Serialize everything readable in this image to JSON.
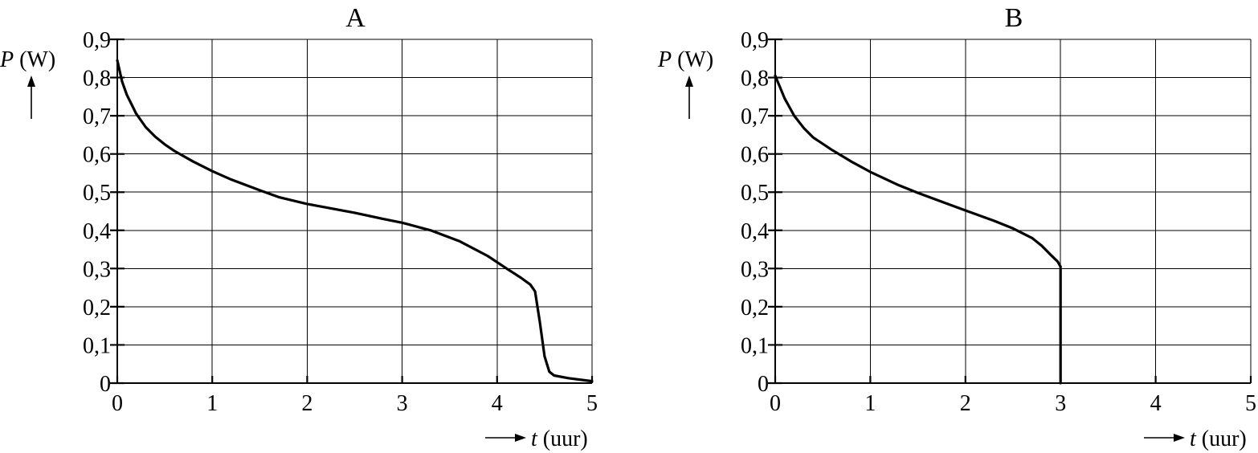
{
  "chart_data": [
    {
      "type": "line",
      "title": "A",
      "xlabel_symbol": "t",
      "xlabel_unit": "(uur)",
      "ylabel_symbol": "P",
      "ylabel_unit": "(W)",
      "xlim": [
        0,
        5
      ],
      "ylim": [
        0,
        0.9
      ],
      "x_ticks": [
        "0",
        "1",
        "2",
        "3",
        "4",
        "5"
      ],
      "y_ticks": [
        "0",
        "0,1",
        "0,2",
        "0,3",
        "0,4",
        "0,5",
        "0,6",
        "0,7",
        "0,8",
        "0,9"
      ],
      "grid": true,
      "series": [
        {
          "points": [
            [
              0,
              0.845
            ],
            [
              0.05,
              0.79
            ],
            [
              0.1,
              0.755
            ],
            [
              0.2,
              0.705
            ],
            [
              0.3,
              0.67
            ],
            [
              0.4,
              0.645
            ],
            [
              0.5,
              0.625
            ],
            [
              0.6,
              0.608
            ],
            [
              0.8,
              0.58
            ],
            [
              1.0,
              0.555
            ],
            [
              1.2,
              0.533
            ],
            [
              1.5,
              0.505
            ],
            [
              1.7,
              0.487
            ],
            [
              2.0,
              0.469
            ],
            [
              2.5,
              0.446
            ],
            [
              2.8,
              0.43
            ],
            [
              3.0,
              0.42
            ],
            [
              3.3,
              0.4
            ],
            [
              3.6,
              0.372
            ],
            [
              3.9,
              0.333
            ],
            [
              4.1,
              0.3
            ],
            [
              4.25,
              0.276
            ],
            [
              4.35,
              0.258
            ],
            [
              4.4,
              0.24
            ],
            [
              4.45,
              0.16
            ],
            [
              4.5,
              0.07
            ],
            [
              4.55,
              0.03
            ],
            [
              4.6,
              0.02
            ],
            [
              4.75,
              0.013
            ],
            [
              5.0,
              0.005
            ]
          ]
        }
      ]
    },
    {
      "type": "line",
      "title": "B",
      "xlabel_symbol": "t",
      "xlabel_unit": "(uur)",
      "ylabel_symbol": "P",
      "ylabel_unit": "(W)",
      "xlim": [
        0,
        5
      ],
      "ylim": [
        0,
        0.9
      ],
      "x_ticks": [
        "0",
        "1",
        "2",
        "3",
        "4",
        "5"
      ],
      "y_ticks": [
        "0",
        "0,1",
        "0,2",
        "0,3",
        "0,4",
        "0,5",
        "0,6",
        "0,7",
        "0,8",
        "0,9"
      ],
      "grid": true,
      "series": [
        {
          "points": [
            [
              0,
              0.805
            ],
            [
              0.05,
              0.775
            ],
            [
              0.1,
              0.745
            ],
            [
              0.2,
              0.7
            ],
            [
              0.3,
              0.668
            ],
            [
              0.4,
              0.643
            ],
            [
              0.6,
              0.61
            ],
            [
              0.8,
              0.58
            ],
            [
              1.0,
              0.553
            ],
            [
              1.3,
              0.518
            ],
            [
              1.5,
              0.498
            ],
            [
              2.0,
              0.452
            ],
            [
              2.3,
              0.425
            ],
            [
              2.5,
              0.405
            ],
            [
              2.7,
              0.38
            ],
            [
              2.8,
              0.36
            ],
            [
              2.9,
              0.335
            ],
            [
              2.97,
              0.318
            ],
            [
              3.0,
              0.305
            ],
            [
              3.0,
              0.0
            ]
          ]
        }
      ]
    }
  ]
}
